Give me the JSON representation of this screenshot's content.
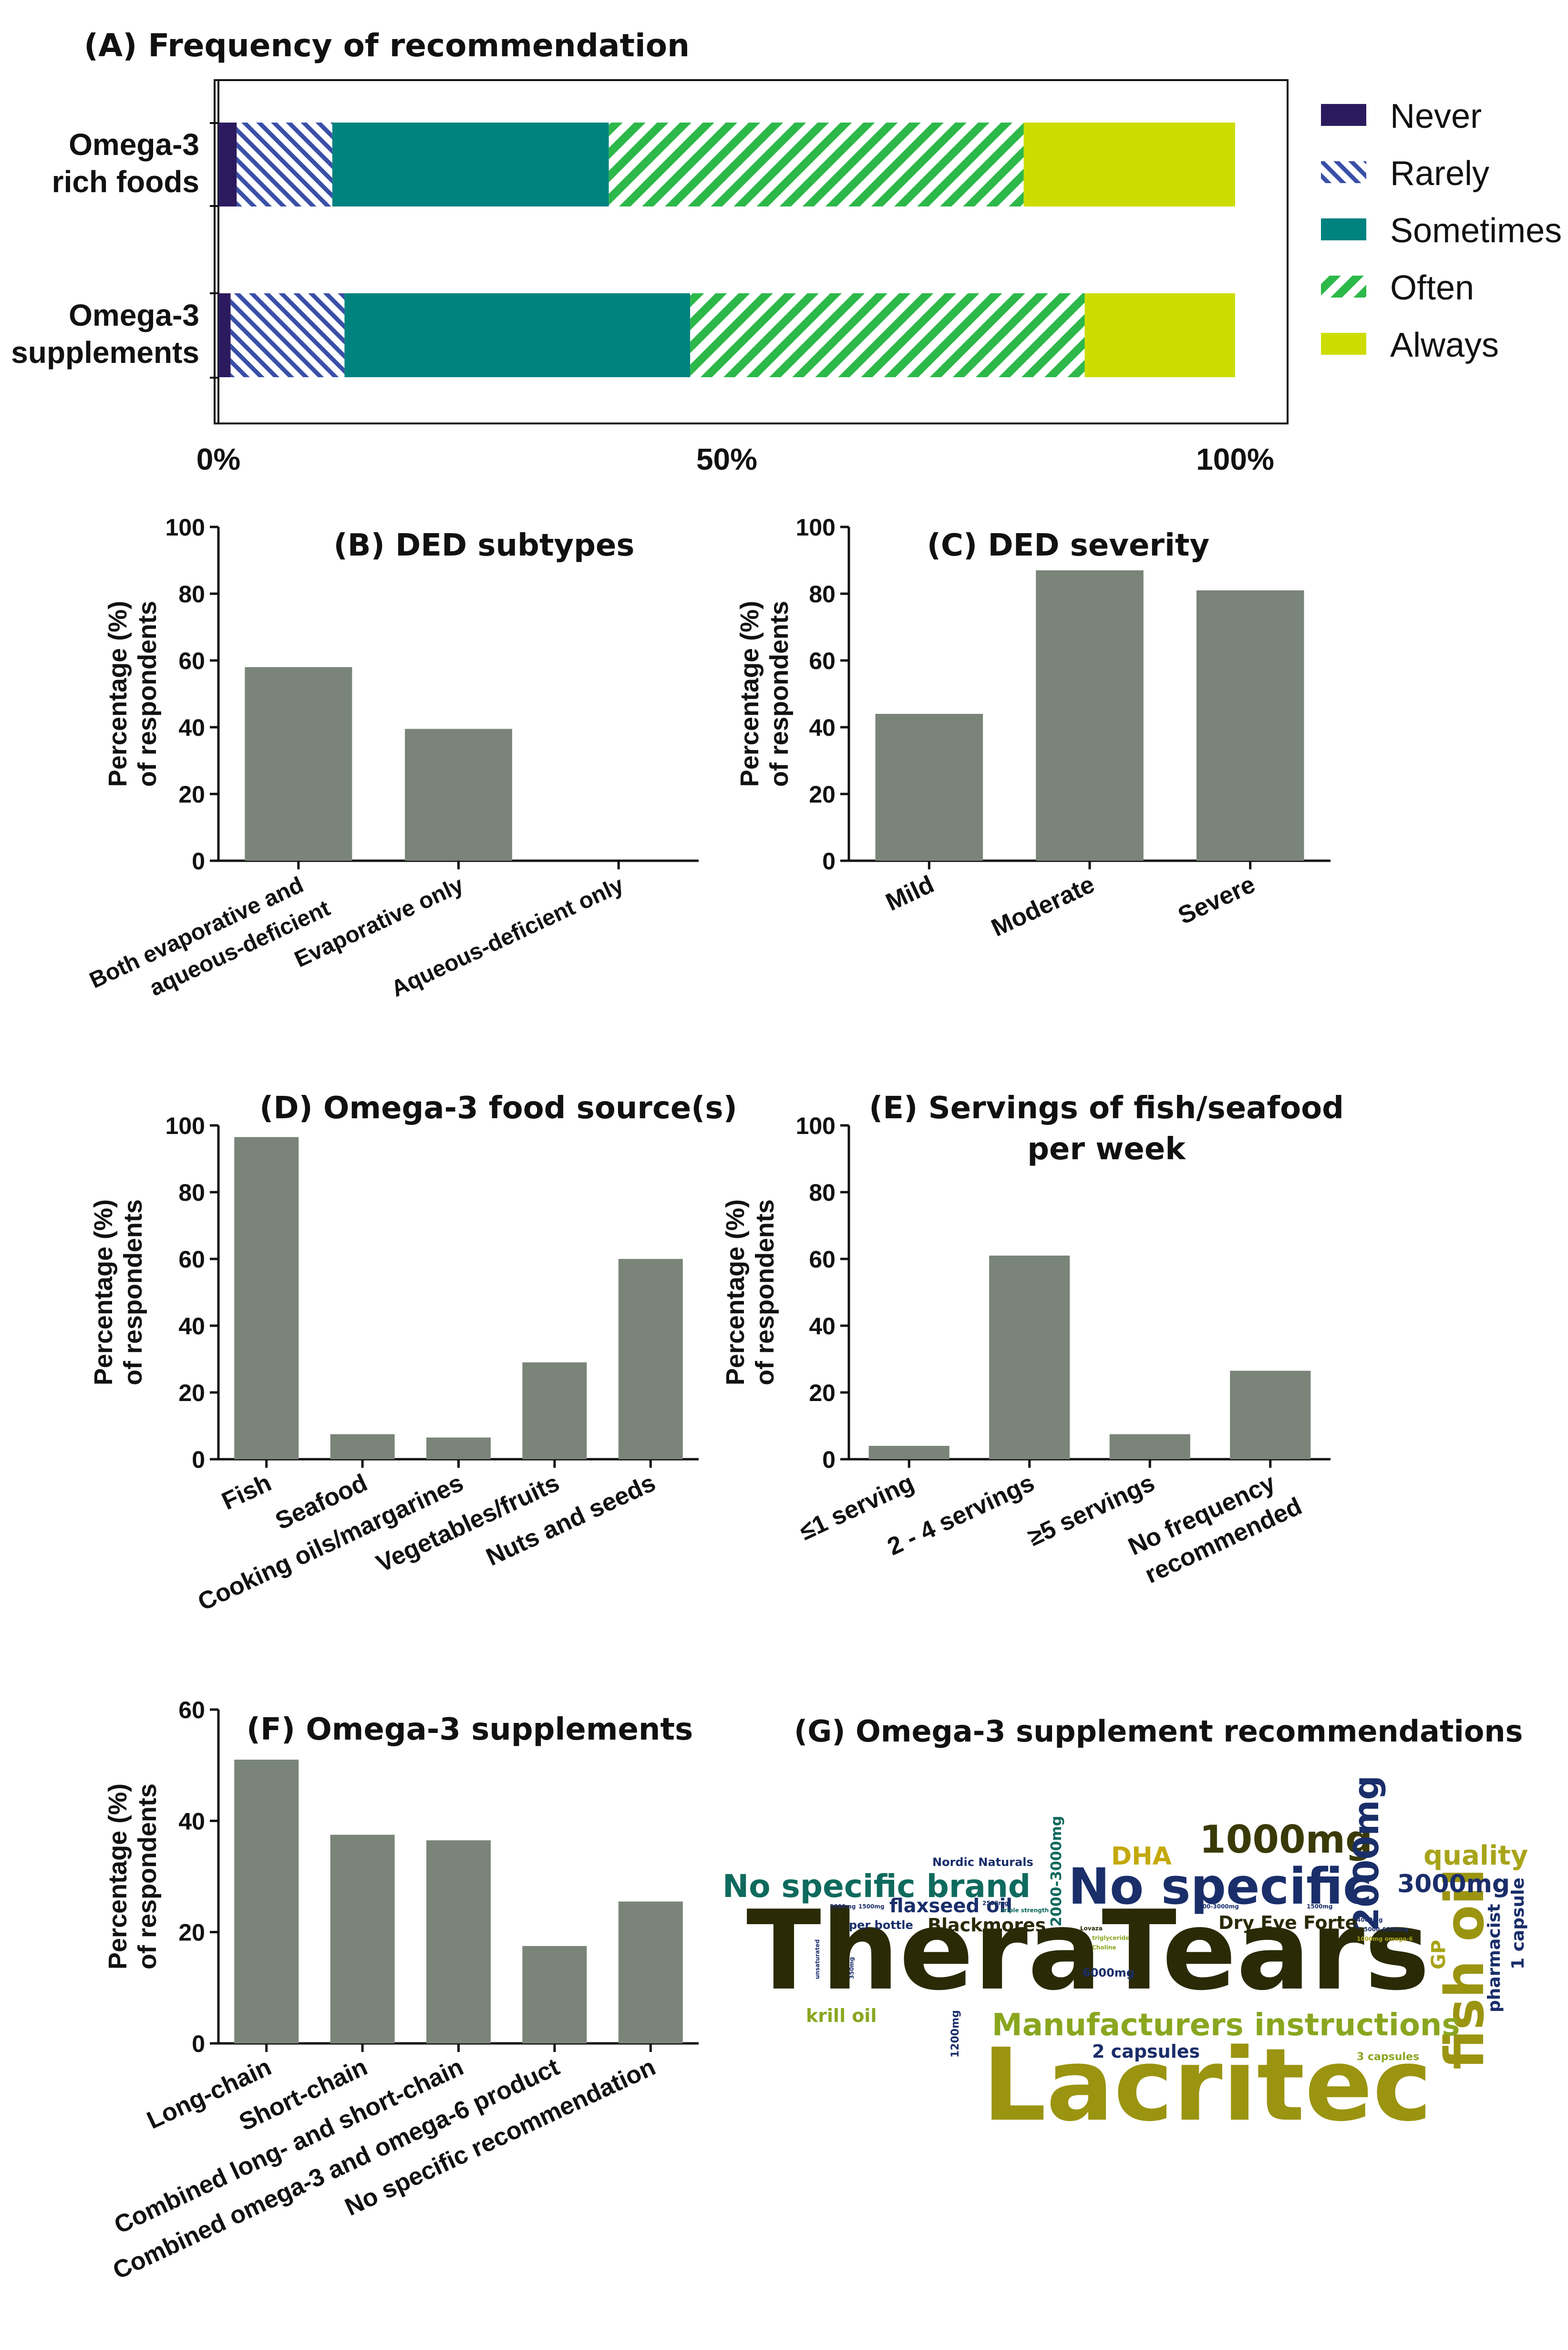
{
  "colors": {
    "never": "#2c1a5e",
    "rarely": "#3a4fa8",
    "sometimes": "#00827f",
    "often": "#2db84a",
    "always": "#cddc00",
    "bar": "#7a8479",
    "axis": "#111111"
  },
  "chart_data": [
    {
      "id": "A",
      "type": "bar",
      "orientation": "horizontal-stacked-100",
      "title": "(A) Frequency of recommendation",
      "categories": [
        "Omega-3 rich foods",
        "Omega-3 supplements"
      ],
      "category_lines": [
        [
          "Omega-3",
          "rich foods"
        ],
        [
          "Omega-3",
          "supplements"
        ]
      ],
      "series": [
        {
          "name": "Never",
          "values": [
            1.8,
            1.2
          ],
          "pattern": "solid",
          "color_key": "never"
        },
        {
          "name": "Rarely",
          "values": [
            9.4,
            11.2
          ],
          "pattern": "hatch",
          "color_key": "rarely"
        },
        {
          "name": "Sometimes",
          "values": [
            27.2,
            34.0
          ],
          "pattern": "solid",
          "color_key": "sometimes"
        },
        {
          "name": "Often",
          "values": [
            40.8,
            38.8
          ],
          "pattern": "hatch",
          "color_key": "often"
        },
        {
          "name": "Always",
          "values": [
            20.8,
            14.8
          ],
          "pattern": "solid",
          "color_key": "always"
        }
      ],
      "xticks": [
        "0%",
        "50%",
        "100%"
      ],
      "xlim": [
        0,
        100
      ]
    },
    {
      "id": "B",
      "type": "bar",
      "title": "(B) DED subtypes",
      "ylabel_lines": [
        "Percentage (%)",
        "of respondents"
      ],
      "categories": [
        "Both evaporative and aqueous-deficient",
        "Evaporative only",
        "Aqueous-deficient only"
      ],
      "category_lines": [
        [
          "Both evaporative and",
          "aqueous-deficient"
        ],
        [
          "Evaporative only"
        ],
        [
          "Aqueous-deficient only"
        ]
      ],
      "values": [
        58,
        39.5,
        0
      ],
      "yticks": [
        "0",
        "20",
        "40",
        "60",
        "80",
        "100"
      ],
      "ylim": [
        0,
        100
      ]
    },
    {
      "id": "C",
      "type": "bar",
      "title": "(C) DED severity",
      "ylabel_lines": [
        "Percentage (%)",
        "of respondents"
      ],
      "categories": [
        "Mild",
        "Moderate",
        "Severe"
      ],
      "category_lines": [
        [
          "Mild"
        ],
        [
          "Moderate"
        ],
        [
          "Severe"
        ]
      ],
      "values": [
        44,
        87,
        81
      ],
      "yticks": [
        "0",
        "20",
        "40",
        "60",
        "80",
        "100"
      ],
      "ylim": [
        0,
        100
      ]
    },
    {
      "id": "D",
      "type": "bar",
      "title": "(D) Omega-3 food source(s)",
      "ylabel_lines": [
        "Percentage (%)",
        "of respondents"
      ],
      "categories": [
        "Fish",
        "Seafood",
        "Cooking oils/margarines",
        "Vegetables/fruits",
        "Nuts and seeds"
      ],
      "category_lines": [
        [
          "Fish"
        ],
        [
          "Seafood"
        ],
        [
          "Cooking oils/margarines"
        ],
        [
          "Vegetables/fruits"
        ],
        [
          "Nuts and seeds"
        ]
      ],
      "values": [
        96.5,
        7.5,
        6.5,
        29,
        60
      ],
      "yticks": [
        "0",
        "20",
        "40",
        "60",
        "80",
        "100"
      ],
      "ylim": [
        0,
        100
      ]
    },
    {
      "id": "E",
      "type": "bar",
      "title_lines": [
        "(E) Servings of fish/seafood",
        "per week"
      ],
      "ylabel_lines": [
        "Percentage (%)",
        "of respondents"
      ],
      "categories": [
        "≤1 serving",
        "2 - 4 servings",
        "≥5 servings",
        "No frequency recommended"
      ],
      "category_lines": [
        [
          "≤1 serving"
        ],
        [
          "2 - 4 servings"
        ],
        [
          "≥5 servings"
        ],
        [
          "No frequency",
          "recommended"
        ]
      ],
      "values": [
        4,
        61,
        7.5,
        26.5
      ],
      "yticks": [
        "0",
        "20",
        "40",
        "60",
        "80",
        "100"
      ],
      "ylim": [
        0,
        100
      ]
    },
    {
      "id": "F",
      "type": "bar",
      "title": "(F) Omega-3 supplements",
      "ylabel_lines": [
        "Percentage (%)",
        "of respondents"
      ],
      "categories": [
        "Long-chain",
        "Short-chain",
        "Combined long- and short-chain",
        "Combined omega-3 and omega-6 product",
        "No specific recommendation"
      ],
      "category_lines": [
        [
          "Long-chain"
        ],
        [
          "Short-chain"
        ],
        [
          "Combined long- and short-chain"
        ],
        [
          "Combined omega-3 and omega-6 product"
        ],
        [
          "No specific recommendation"
        ]
      ],
      "values": [
        51,
        37.5,
        36.5,
        17.5,
        25.5
      ],
      "yticks": [
        "0",
        "20",
        "40",
        "60"
      ],
      "ylim": [
        0,
        60
      ]
    }
  ],
  "wordcloud": {
    "title": "(G) Omega-3 supplement recommendations",
    "words": [
      {
        "text": "TheraTears",
        "weight": 100,
        "color": "#2a2a06"
      },
      {
        "text": "Lacritec",
        "weight": 90,
        "color": "#9b9411"
      },
      {
        "text": "No specific",
        "weight": 42,
        "color": "#1a2e6a"
      },
      {
        "text": "fish oil",
        "weight": 45,
        "color": "#9b9411"
      },
      {
        "text": "Manufacturers instructions",
        "weight": 24,
        "color": "#8aa620"
      },
      {
        "text": "No specific brand",
        "weight": 24,
        "color": "#0f6a5e"
      },
      {
        "text": "1000mg",
        "weight": 28,
        "color": "#3a3a08"
      },
      {
        "text": "2000mg",
        "weight": 22,
        "color": "#1a2e6a"
      },
      {
        "text": "quality",
        "weight": 18,
        "color": "#a8a41a"
      },
      {
        "text": "3000mg",
        "weight": 17,
        "color": "#1a2e6a"
      },
      {
        "text": "DHA",
        "weight": 17,
        "color": "#c4a80a"
      },
      {
        "text": "Dry Eye Forte",
        "weight": 14,
        "color": "#2a2a06"
      },
      {
        "text": "Blackmores",
        "weight": 13,
        "color": "#2a2a06"
      },
      {
        "text": "flaxseed oil",
        "weight": 14,
        "color": "#1a2e6a"
      },
      {
        "text": "krill oil",
        "weight": 13,
        "color": "#8aa620"
      },
      {
        "text": "2 capsules",
        "weight": 13,
        "color": "#1a2e6a"
      },
      {
        "text": "pharmacist",
        "weight": 13,
        "color": "#1a2e6a"
      },
      {
        "text": "1 capsule",
        "weight": 13,
        "color": "#1a2e6a"
      },
      {
        "text": "GP",
        "weight": 14,
        "color": "#a8a41a"
      },
      {
        "text": "2000-3000mg",
        "weight": 10,
        "color": "#0f6a5e"
      },
      {
        "text": "Nordic Naturals",
        "weight": 8,
        "color": "#1a2e6a"
      },
      {
        "text": "per bottle",
        "weight": 8,
        "color": "#1a2e6a"
      },
      {
        "text": "6000mg",
        "weight": 8,
        "color": "#1a2e6a"
      },
      {
        "text": "3 capsules",
        "weight": 7,
        "color": "#8aa620"
      },
      {
        "text": "1200mg",
        "weight": 7,
        "color": "#1a2e6a"
      },
      {
        "text": "2800mg",
        "weight": 4,
        "color": "#1a2e6a"
      },
      {
        "text": "triple strength",
        "weight": 4,
        "color": "#0f6a5e"
      },
      {
        "text": "1500mg",
        "weight": 4,
        "color": "#1a2e6a"
      },
      {
        "text": "1800-3000mg",
        "weight": 4,
        "color": "#1a2e6a"
      },
      {
        "text": "2500mg",
        "weight": 4,
        "color": "#1a2e6a"
      },
      {
        "text": "unsaturated",
        "weight": 4,
        "color": "#1a2e6a"
      },
      {
        "text": "350mg",
        "weight": 4,
        "color": "#1a2e6a"
      },
      {
        "text": "Lovaza",
        "weight": 4,
        "color": "#2a2a06"
      },
      {
        "text": "triglyceride",
        "weight": 4,
        "color": "#8aa620"
      },
      {
        "text": "Choline",
        "weight": 4,
        "color": "#8aa620"
      },
      {
        "text": "4000mg",
        "weight": 4,
        "color": "#1a2e6a"
      },
      {
        "text": "5000-6000mg",
        "weight": 4,
        "color": "#1a2e6a"
      },
      {
        "text": "1000mg omega-6",
        "weight": 4,
        "color": "#a8a41a"
      },
      {
        "text": "1500mg",
        "weight": 4,
        "color": "#1a2e6a"
      }
    ]
  }
}
